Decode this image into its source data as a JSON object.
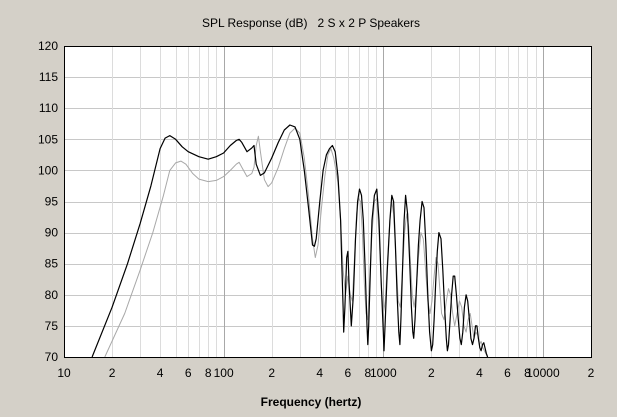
{
  "chart_data": {
    "type": "line",
    "title": "SPL Response (dB)   2 S x 2 P Speakers",
    "xlabel": "Frequency (hertz)",
    "ylabel": "",
    "x_scale": "log",
    "xlim": [
      10,
      20000
    ],
    "ylim": [
      70,
      120
    ],
    "grid": true,
    "x_ticks": [
      {
        "value": 10,
        "label": "10"
      },
      {
        "value": 20,
        "label": "2"
      },
      {
        "value": 40,
        "label": "4"
      },
      {
        "value": 60,
        "label": "6"
      },
      {
        "value": 80,
        "label": "8"
      },
      {
        "value": 100,
        "label": "100"
      },
      {
        "value": 200,
        "label": "2"
      },
      {
        "value": 400,
        "label": "4"
      },
      {
        "value": 600,
        "label": "6"
      },
      {
        "value": 800,
        "label": "8"
      },
      {
        "value": 1000,
        "label": "1000"
      },
      {
        "value": 2000,
        "label": "2"
      },
      {
        "value": 4000,
        "label": "4"
      },
      {
        "value": 6000,
        "label": "6"
      },
      {
        "value": 8000,
        "label": "8"
      },
      {
        "value": 10000,
        "label": "10000"
      },
      {
        "value": 20000,
        "label": "2"
      }
    ],
    "y_ticks": [
      70,
      75,
      80,
      85,
      90,
      95,
      100,
      105,
      110,
      115,
      120
    ],
    "series": [
      {
        "color": "#000000",
        "points": [
          [
            15,
            70
          ],
          [
            20,
            78
          ],
          [
            25,
            85
          ],
          [
            30,
            91.5
          ],
          [
            35,
            97.5
          ],
          [
            40,
            103.5
          ],
          [
            43,
            105.2
          ],
          [
            46,
            105.6
          ],
          [
            50,
            105
          ],
          [
            55,
            103.8
          ],
          [
            60,
            103
          ],
          [
            70,
            102.2
          ],
          [
            80,
            101.8
          ],
          [
            90,
            102.2
          ],
          [
            100,
            102.8
          ],
          [
            110,
            104
          ],
          [
            120,
            104.8
          ],
          [
            125,
            105
          ],
          [
            130,
            104.5
          ],
          [
            140,
            103
          ],
          [
            150,
            103.6
          ],
          [
            155,
            104
          ],
          [
            160,
            101
          ],
          [
            170,
            99.2
          ],
          [
            180,
            99.6
          ],
          [
            200,
            102
          ],
          [
            220,
            104.5
          ],
          [
            240,
            106.5
          ],
          [
            260,
            107.3
          ],
          [
            280,
            107
          ],
          [
            300,
            105
          ],
          [
            320,
            100
          ],
          [
            340,
            94
          ],
          [
            360,
            88
          ],
          [
            370,
            87.8
          ],
          [
            380,
            89
          ],
          [
            400,
            95
          ],
          [
            420,
            100
          ],
          [
            440,
            102.5
          ],
          [
            460,
            103.5
          ],
          [
            480,
            104
          ],
          [
            500,
            103
          ],
          [
            520,
            99
          ],
          [
            540,
            92
          ],
          [
            550,
            85
          ],
          [
            560,
            78
          ],
          [
            565,
            74
          ],
          [
            575,
            78
          ],
          [
            590,
            86
          ],
          [
            600,
            87
          ],
          [
            610,
            82
          ],
          [
            630,
            75
          ],
          [
            650,
            80
          ],
          [
            670,
            89
          ],
          [
            690,
            95
          ],
          [
            710,
            97
          ],
          [
            730,
            96
          ],
          [
            750,
            92
          ],
          [
            770,
            84
          ],
          [
            790,
            75
          ],
          [
            800,
            72
          ],
          [
            810,
            75
          ],
          [
            830,
            84
          ],
          [
            850,
            92
          ],
          [
            880,
            96
          ],
          [
            910,
            97
          ],
          [
            940,
            92
          ],
          [
            970,
            82
          ],
          [
            1000,
            74
          ],
          [
            1010,
            71
          ],
          [
            1030,
            76
          ],
          [
            1060,
            84
          ],
          [
            1100,
            92
          ],
          [
            1130,
            96
          ],
          [
            1160,
            95
          ],
          [
            1190,
            88
          ],
          [
            1220,
            80
          ],
          [
            1250,
            74
          ],
          [
            1270,
            72
          ],
          [
            1290,
            76
          ],
          [
            1320,
            84
          ],
          [
            1350,
            92
          ],
          [
            1380,
            96
          ],
          [
            1420,
            93
          ],
          [
            1460,
            86
          ],
          [
            1500,
            78
          ],
          [
            1530,
            74
          ],
          [
            1550,
            73
          ],
          [
            1580,
            76
          ],
          [
            1620,
            82
          ],
          [
            1660,
            88
          ],
          [
            1700,
            92
          ],
          [
            1750,
            95
          ],
          [
            1800,
            94
          ],
          [
            1850,
            88
          ],
          [
            1900,
            80
          ],
          [
            1950,
            74
          ],
          [
            2000,
            71
          ],
          [
            2040,
            72
          ],
          [
            2080,
            76
          ],
          [
            2130,
            82
          ],
          [
            2180,
            87
          ],
          [
            2230,
            90
          ],
          [
            2300,
            89
          ],
          [
            2360,
            84
          ],
          [
            2420,
            78
          ],
          [
            2480,
            73
          ],
          [
            2520,
            71
          ],
          [
            2560,
            72
          ],
          [
            2620,
            76
          ],
          [
            2680,
            80
          ],
          [
            2740,
            83
          ],
          [
            2800,
            83
          ],
          [
            2870,
            80
          ],
          [
            2950,
            76
          ],
          [
            3020,
            73
          ],
          [
            3080,
            72
          ],
          [
            3150,
            74
          ],
          [
            3220,
            78
          ],
          [
            3300,
            80
          ],
          [
            3380,
            79
          ],
          [
            3460,
            76
          ],
          [
            3540,
            73
          ],
          [
            3620,
            72
          ],
          [
            3700,
            73
          ],
          [
            3780,
            75
          ],
          [
            3860,
            75
          ],
          [
            3940,
            73
          ],
          [
            4020,
            71.5
          ],
          [
            4100,
            71
          ],
          [
            4180,
            72
          ],
          [
            4260,
            72.3
          ],
          [
            4340,
            71.4
          ],
          [
            4420,
            70.6
          ],
          [
            4500,
            70
          ]
        ]
      },
      {
        "color": "#a8a8a8",
        "points": [
          [
            18,
            70
          ],
          [
            24,
            77
          ],
          [
            30,
            84
          ],
          [
            36,
            90
          ],
          [
            42,
            96
          ],
          [
            46,
            100
          ],
          [
            50,
            101.2
          ],
          [
            54,
            101.5
          ],
          [
            58,
            101
          ],
          [
            64,
            99.5
          ],
          [
            70,
            98.6
          ],
          [
            80,
            98.2
          ],
          [
            90,
            98.4
          ],
          [
            100,
            99
          ],
          [
            110,
            100
          ],
          [
            120,
            101
          ],
          [
            125,
            101.3
          ],
          [
            130,
            100.5
          ],
          [
            140,
            99
          ],
          [
            150,
            99.5
          ],
          [
            155,
            100.5
          ],
          [
            160,
            104
          ],
          [
            165,
            105.5
          ],
          [
            170,
            103
          ],
          [
            180,
            98.5
          ],
          [
            190,
            97.4
          ],
          [
            200,
            98
          ],
          [
            220,
            100.5
          ],
          [
            240,
            103.5
          ],
          [
            260,
            106
          ],
          [
            280,
            106.8
          ],
          [
            300,
            106
          ],
          [
            320,
            102
          ],
          [
            340,
            96
          ],
          [
            360,
            89
          ],
          [
            375,
            86
          ],
          [
            390,
            88
          ],
          [
            410,
            94
          ],
          [
            430,
            99
          ],
          [
            450,
            102.5
          ],
          [
            470,
            103.5
          ],
          [
            490,
            102
          ],
          [
            520,
            98
          ],
          [
            540,
            92
          ],
          [
            560,
            84
          ],
          [
            580,
            80
          ],
          [
            600,
            83
          ],
          [
            620,
            80
          ],
          [
            640,
            79
          ],
          [
            660,
            86
          ],
          [
            680,
            93
          ],
          [
            700,
            95.5
          ],
          [
            720,
            95
          ],
          [
            740,
            90
          ],
          [
            760,
            82
          ],
          [
            780,
            77
          ],
          [
            800,
            76
          ],
          [
            820,
            82
          ],
          [
            850,
            90
          ],
          [
            880,
            95
          ],
          [
            910,
            95.5
          ],
          [
            940,
            90
          ],
          [
            970,
            82
          ],
          [
            1000,
            77
          ],
          [
            1030,
            79
          ],
          [
            1060,
            85
          ],
          [
            1100,
            92
          ],
          [
            1130,
            95
          ],
          [
            1160,
            93
          ],
          [
            1200,
            86
          ],
          [
            1240,
            79
          ],
          [
            1280,
            78
          ],
          [
            1320,
            84
          ],
          [
            1360,
            90
          ],
          [
            1400,
            93
          ],
          [
            1440,
            91
          ],
          [
            1480,
            85
          ],
          [
            1520,
            80
          ],
          [
            1560,
            78
          ],
          [
            1600,
            80
          ],
          [
            1660,
            86
          ],
          [
            1720,
            90
          ],
          [
            1780,
            89
          ],
          [
            1840,
            84
          ],
          [
            1900,
            79
          ],
          [
            1960,
            77
          ],
          [
            2020,
            79
          ],
          [
            2080,
            83
          ],
          [
            2140,
            86
          ],
          [
            2200,
            85
          ],
          [
            2260,
            81
          ],
          [
            2320,
            77
          ],
          [
            2400,
            76
          ],
          [
            2480,
            79
          ],
          [
            2560,
            81
          ],
          [
            2640,
            80
          ],
          [
            2720,
            77
          ],
          [
            2800,
            75
          ],
          [
            2900,
            77
          ],
          [
            3000,
            79
          ],
          [
            3100,
            78
          ],
          [
            3200,
            75
          ],
          [
            3300,
            74
          ],
          [
            3400,
            76
          ],
          [
            3500,
            77
          ],
          [
            3600,
            75
          ],
          [
            3700,
            73
          ],
          [
            3800,
            74
          ],
          [
            3900,
            73.5
          ],
          [
            4000,
            72
          ],
          [
            4100,
            72.5
          ],
          [
            4200,
            71.5
          ],
          [
            4300,
            71
          ],
          [
            4400,
            70.5
          ],
          [
            4500,
            70
          ]
        ]
      }
    ]
  }
}
